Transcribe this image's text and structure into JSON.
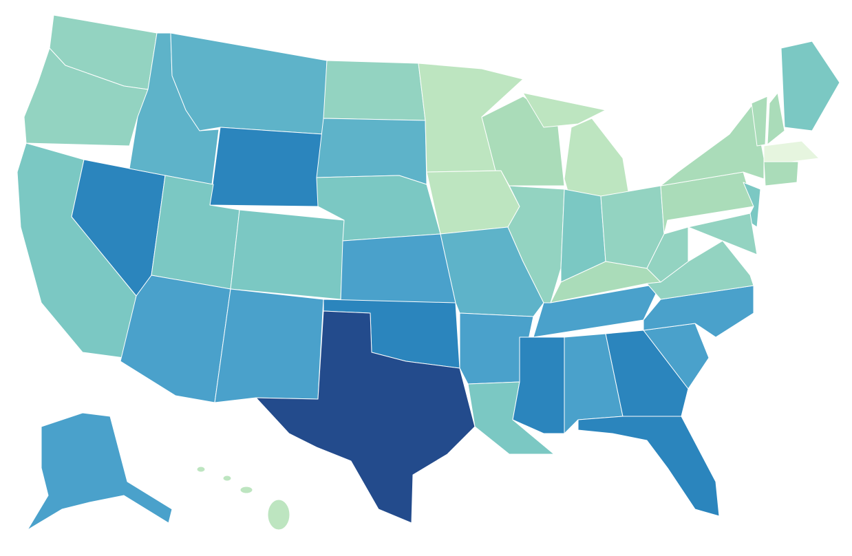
{
  "map": {
    "colors": [
      "#e6f5df",
      "#bde5c0",
      "#aadcb9",
      "#93d3c1",
      "#7bc8c3",
      "#5eb3c9",
      "#4aa1cb",
      "#2b85bd",
      "#234b8c"
    ]
  }
}
